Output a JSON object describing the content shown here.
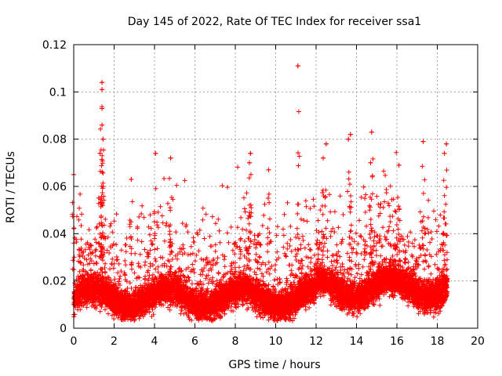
{
  "chart_data": {
    "type": "scatter",
    "title": "Day 145 of 2022, Rate Of TEC Index for receiver ssa1",
    "xlabel": "GPS time / hours",
    "ylabel": "ROTI / TECUs",
    "xlim": [
      0,
      20
    ],
    "ylim": [
      0,
      0.12
    ],
    "xticks": [
      0,
      2,
      4,
      6,
      8,
      10,
      12,
      14,
      16,
      18,
      20
    ],
    "yticks": [
      0,
      0.02,
      0.04,
      0.06,
      0.08,
      0.1,
      0.12
    ],
    "ytick_labels": [
      "0",
      "0.02",
      "0.04",
      "0.06",
      "0.08",
      "0.1",
      "0.12"
    ],
    "grid": true,
    "marker": "+",
    "series_color": "#ff0000",
    "data_range_hours": [
      0,
      18.5
    ],
    "typical_band": [
      0.005,
      0.03
    ],
    "notable_points": [
      {
        "x": 0.0,
        "y": 0.065
      },
      {
        "x": 1.4,
        "y": 0.104
      },
      {
        "x": 1.4,
        "y": 0.101
      },
      {
        "x": 1.4,
        "y": 0.093
      },
      {
        "x": 1.4,
        "y": 0.086
      },
      {
        "x": 1.45,
        "y": 0.08
      },
      {
        "x": 1.3,
        "y": 0.074
      },
      {
        "x": 2.85,
        "y": 0.063
      },
      {
        "x": 4.05,
        "y": 0.074
      },
      {
        "x": 4.8,
        "y": 0.072
      },
      {
        "x": 8.75,
        "y": 0.074
      },
      {
        "x": 8.7,
        "y": 0.07
      },
      {
        "x": 9.65,
        "y": 0.067
      },
      {
        "x": 11.1,
        "y": 0.111
      },
      {
        "x": 12.5,
        "y": 0.078
      },
      {
        "x": 12.35,
        "y": 0.072
      },
      {
        "x": 13.7,
        "y": 0.082
      },
      {
        "x": 13.6,
        "y": 0.08
      },
      {
        "x": 14.75,
        "y": 0.083
      },
      {
        "x": 14.7,
        "y": 0.07
      },
      {
        "x": 16.1,
        "y": 0.069
      },
      {
        "x": 17.3,
        "y": 0.079
      },
      {
        "x": 18.45,
        "y": 0.078
      },
      {
        "x": 18.35,
        "y": 0.074
      }
    ]
  }
}
